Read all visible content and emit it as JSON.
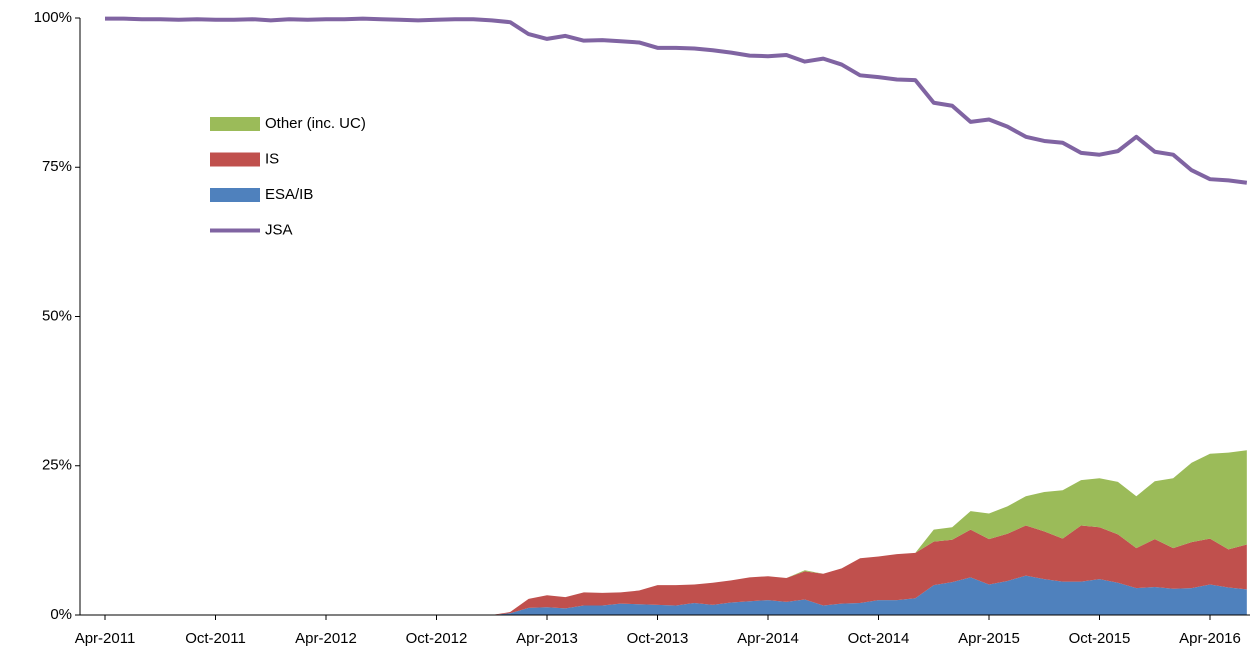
{
  "chart_data": {
    "type": "area",
    "categories": [
      "Apr-2011",
      null,
      null,
      null,
      null,
      null,
      "Oct-2011",
      null,
      null,
      null,
      null,
      null,
      "Apr-2012",
      null,
      null,
      null,
      null,
      null,
      "Oct-2012",
      null,
      null,
      null,
      null,
      null,
      "Apr-2013",
      null,
      null,
      null,
      null,
      null,
      "Oct-2013",
      null,
      null,
      null,
      null,
      null,
      "Apr-2014",
      null,
      null,
      null,
      null,
      null,
      "Oct-2014",
      null,
      null,
      null,
      null,
      null,
      "Apr-2015",
      null,
      null,
      null,
      null,
      null,
      "Oct-2015",
      null,
      null,
      null,
      null,
      null,
      "Apr-2016",
      null,
      null
    ],
    "series": [
      {
        "name": "ESA/IB",
        "type": "area",
        "color": "#4f81bd",
        "values": [
          0,
          0,
          0,
          0,
          0,
          0,
          0,
          0,
          0,
          0,
          0,
          0,
          0,
          0,
          0,
          0,
          0,
          0,
          0,
          0,
          0,
          0,
          0.3,
          1.2,
          1.3,
          1.1,
          1.6,
          1.6,
          1.9,
          1.8,
          1.7,
          1.6,
          2,
          1.7,
          2.1,
          2.3,
          2.5,
          2.2,
          2.6,
          1.6,
          1.9,
          2,
          2.5,
          2.5,
          2.8,
          5,
          5.5,
          6.3,
          5.1,
          5.7,
          6.6,
          6,
          5.6,
          5.6,
          6,
          5.4,
          4.5,
          4.7,
          4.4,
          4.5,
          5.1,
          4.6,
          4.3
        ]
      },
      {
        "name": "IS",
        "type": "area",
        "color": "#c0504d",
        "values": [
          0,
          0,
          0,
          0,
          0,
          0,
          0,
          0,
          0,
          0,
          0,
          0,
          0,
          0,
          0,
          0,
          0,
          0,
          0,
          0,
          0,
          0,
          0.2,
          1.5,
          2,
          1.9,
          2.2,
          2.1,
          1.9,
          2.3,
          3.3,
          3.4,
          3.1,
          3.7,
          3.7,
          4,
          4,
          4,
          4.7,
          5.3,
          5.9,
          7.5,
          7.3,
          7.7,
          7.6,
          7.3,
          7.1,
          8,
          7.6,
          7.9,
          8.4,
          8,
          7.2,
          9.4,
          8.7,
          8.1,
          6.7,
          8,
          6.8,
          7.7,
          7.7,
          6.4,
          7.5
        ]
      },
      {
        "name": "Other (inc. UC)",
        "type": "area",
        "color": "#9bbb59",
        "values": [
          0,
          0,
          0,
          0,
          0,
          0,
          0,
          0,
          0,
          0,
          0,
          0,
          0,
          0,
          0,
          0,
          0,
          0,
          0,
          0,
          0,
          0,
          0,
          0,
          0,
          0,
          0,
          0,
          0,
          0,
          0,
          0,
          0,
          0,
          0,
          0,
          0,
          0,
          0.2,
          0,
          0,
          0,
          0,
          0,
          0,
          2,
          2.1,
          3.1,
          4.3,
          4.6,
          4.9,
          6.6,
          8.1,
          7.6,
          8.2,
          8.8,
          8.7,
          9.7,
          11.7,
          13.3,
          14.2,
          16.2,
          15.8
        ]
      },
      {
        "name": "JSA",
        "type": "line",
        "color": "#8064a2",
        "values": [
          99.9,
          99.9,
          99.8,
          99.8,
          99.7,
          99.8,
          99.7,
          99.7,
          99.8,
          99.6,
          99.8,
          99.7,
          99.8,
          99.8,
          99.9,
          99.8,
          99.7,
          99.6,
          99.7,
          99.8,
          99.8,
          99.6,
          99.3,
          97.3,
          96.5,
          97,
          96.2,
          96.3,
          96.1,
          95.9,
          95,
          95,
          94.9,
          94.6,
          94.2,
          93.7,
          93.6,
          93.8,
          92.7,
          93.2,
          92.2,
          90.4,
          90.1,
          89.7,
          89.6,
          85.8,
          85.3,
          82.6,
          83,
          81.8,
          80.1,
          79.4,
          79.1,
          77.4,
          77.1,
          77.7,
          80.1,
          77.6,
          77.1,
          74.5,
          73,
          72.8,
          72.4
        ]
      }
    ],
    "ylim": [
      0,
      100
    ],
    "yticks": [
      {
        "value": 0,
        "label": "0%"
      },
      {
        "value": 25,
        "label": "25%"
      },
      {
        "value": 50,
        "label": "50%"
      },
      {
        "value": 75,
        "label": "75%"
      },
      {
        "value": 100,
        "label": "100%"
      }
    ]
  }
}
